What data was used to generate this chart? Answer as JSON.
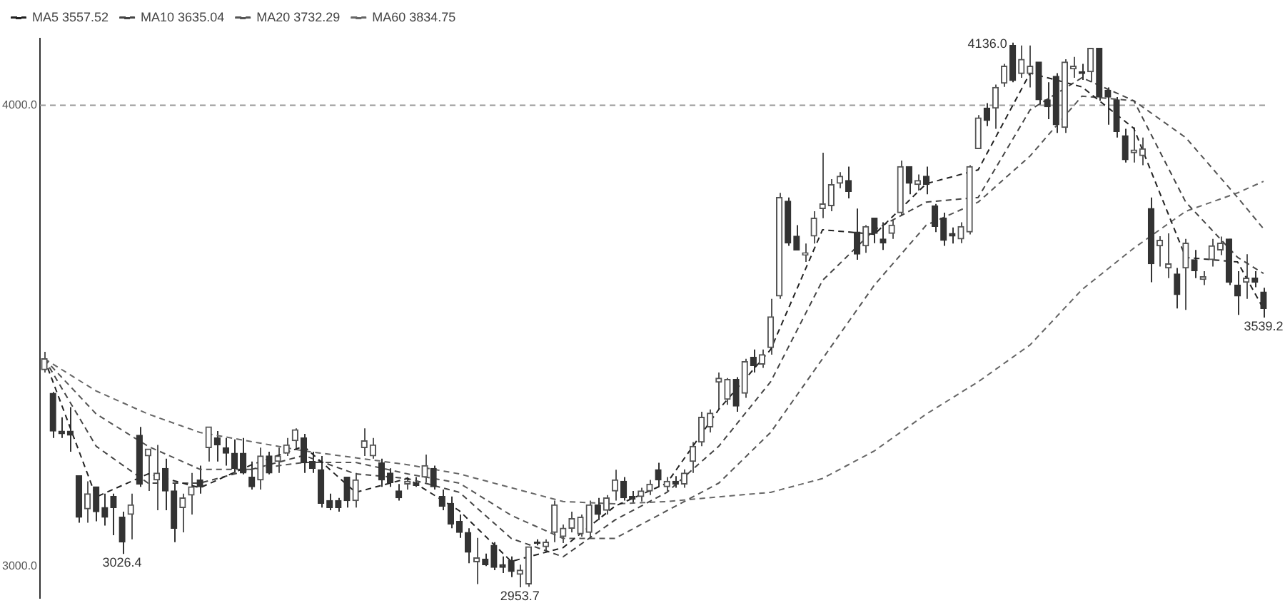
{
  "chart_data": {
    "type": "candlestick",
    "colors": [
      "#555555",
      "#333333",
      "#333333",
      "#333333",
      "#333333",
      "#555555",
      "#333333",
      "#333333",
      "#333333",
      "#333333",
      "#555555",
      "#333333",
      "#555555",
      "#555555",
      "#333333",
      "#333333",
      "#555555",
      "#555555",
      "#333333",
      "#555555",
      "#333333",
      "#333333",
      "#333333",
      "#333333",
      "#333333",
      "#555555",
      "#333333",
      "#555555",
      "#555555",
      "#555555",
      "#333333",
      "#333333",
      "#333333",
      "#333333",
      "#333333",
      "#333333",
      "#555555",
      "#555555",
      "#555555",
      "#333333",
      "#333333",
      "#333333",
      "#555555",
      "#333333",
      "#555555",
      "#333333",
      "#333333",
      "#333333",
      "#333333",
      "#333333",
      "#555555",
      "#333333",
      "#333333",
      "#333333",
      "#333333",
      "#555555",
      "#555555",
      "#333333",
      "#555555",
      "#555555",
      "#555555",
      "#555555",
      "#555555",
      "#555555",
      "#333333",
      "#555555",
      "#555555",
      "#333333",
      "#333333",
      "#555555",
      "#555555",
      "#333333",
      "#555555",
      "#333333",
      "#555555",
      "#555555",
      "#555555",
      "#555555",
      "#555555",
      "#555555",
      "#333333",
      "#555555",
      "#333333",
      "#555555",
      "#555555",
      "#555555",
      "#333333",
      "#333333",
      "#555555",
      "#555555",
      "#555555",
      "#555555",
      "#555555",
      "#333333",
      "#333333",
      "#555555",
      "#333333",
      "#333333",
      "#555555",
      "#555555",
      "#333333",
      "#555555",
      "#333333",
      "#333333",
      "#333333",
      "#333333",
      "#555555",
      "#555555",
      "#555555",
      "#333333",
      "#555555",
      "#555555",
      "#333333",
      "#555555",
      "#555555",
      "#333333",
      "#333333",
      "#333333",
      "#555555",
      "#555555",
      "#333333",
      "#555555",
      "#333333",
      "#333333",
      "#333333",
      "#333333",
      "#555555",
      "#555555",
      "#333333",
      "#555555",
      "#555555",
      "#333333",
      "#555555",
      "#333333",
      "#555555",
      "#555555",
      "#555555",
      "#333333",
      "#333333",
      "#555555",
      "#333333",
      "#333333"
    ],
    "line_style": "dashed",
    "legend": "top left",
    "grid": false,
    "categories": [
      null,
      null,
      null,
      null,
      null,
      null,
      null,
      null,
      null,
      null,
      null,
      null,
      null,
      null,
      null,
      null,
      null,
      null,
      null,
      null,
      null,
      null,
      null,
      null,
      null,
      null,
      null,
      null,
      null,
      null,
      null,
      null,
      null,
      null,
      null,
      null,
      null,
      null,
      null,
      null,
      null,
      null,
      null,
      null,
      null,
      null,
      null,
      null,
      null,
      null,
      null,
      null,
      null,
      null,
      null,
      null,
      null,
      null,
      null,
      null,
      null,
      null,
      null,
      null,
      null,
      null,
      null,
      null,
      null,
      null,
      null,
      null,
      null,
      null,
      null,
      null,
      null,
      null,
      null,
      null,
      null,
      null,
      null,
      null,
      null,
      null,
      null,
      null,
      null,
      null,
      null,
      null,
      null,
      null,
      null,
      null,
      null,
      null,
      null,
      null,
      null,
      null,
      null,
      null,
      null,
      null,
      null,
      null,
      null,
      null,
      null,
      null,
      null,
      null,
      null,
      null,
      null,
      null,
      null,
      null,
      null,
      null,
      null,
      null,
      null,
      null,
      null,
      null,
      null,
      null,
      null,
      null,
      null,
      null,
      null,
      null,
      null,
      null,
      null,
      null,
      null,
      null
    ],
    "ohlc": [
      [
        3426,
        3465,
        3420,
        3450
      ],
      [
        3375,
        3378,
        3278,
        3293
      ],
      [
        3293,
        3323,
        3278,
        3287
      ],
      [
        3293,
        3345,
        3248,
        3284
      ],
      [
        3196,
        3196,
        3094,
        3106
      ],
      [
        3124,
        3184,
        3094,
        3157
      ],
      [
        3172,
        3172,
        3097,
        3118
      ],
      [
        3127,
        3157,
        3088,
        3106
      ],
      [
        3151,
        3157,
        3067,
        3127
      ],
      [
        3106,
        3118,
        3026.4,
        3052
      ],
      [
        3112,
        3157,
        3058,
        3133
      ],
      [
        3284,
        3302,
        3172,
        3178
      ],
      [
        3239,
        3254,
        3163,
        3254
      ],
      [
        3187,
        3263,
        3121,
        3202
      ],
      [
        3212,
        3233,
        3121,
        3163
      ],
      [
        3163,
        3181,
        3052,
        3082
      ],
      [
        3127,
        3157,
        3073,
        3148
      ],
      [
        3154,
        3202,
        3112,
        3172
      ],
      [
        3187,
        3218,
        3157,
        3172
      ],
      [
        3257,
        3302,
        3227,
        3302
      ],
      [
        3278,
        3293,
        3227,
        3263
      ],
      [
        3257,
        3278,
        3218,
        3245
      ],
      [
        3245,
        3275,
        3202,
        3212
      ],
      [
        3245,
        3278,
        3199,
        3202
      ],
      [
        3193,
        3227,
        3166,
        3172
      ],
      [
        3187,
        3257,
        3166,
        3239
      ],
      [
        3239,
        3248,
        3199,
        3202
      ],
      [
        3227,
        3257,
        3202,
        3239
      ],
      [
        3245,
        3278,
        3239,
        3263
      ],
      [
        3272,
        3299,
        3254,
        3296
      ],
      [
        3278,
        3287,
        3202,
        3224
      ],
      [
        3227,
        3248,
        3202,
        3212
      ],
      [
        3209,
        3239,
        3127,
        3136
      ],
      [
        3142,
        3157,
        3121,
        3127
      ],
      [
        3142,
        3148,
        3118,
        3127
      ],
      [
        3193,
        3193,
        3127,
        3142
      ],
      [
        3142,
        3202,
        3127,
        3187
      ],
      [
        3257,
        3299,
        3239,
        3272
      ],
      [
        3239,
        3278,
        3233,
        3263
      ],
      [
        3224,
        3233,
        3172,
        3187
      ],
      [
        3202,
        3212,
        3172,
        3181
      ],
      [
        3163,
        3178,
        3142,
        3148
      ],
      [
        3178,
        3193,
        3166,
        3184
      ],
      [
        3181,
        3193,
        3172,
        3175
      ],
      [
        3193,
        3242,
        3181,
        3218
      ],
      [
        3212,
        3218,
        3166,
        3172
      ],
      [
        3151,
        3166,
        3121,
        3130
      ],
      [
        3136,
        3151,
        3082,
        3091
      ],
      [
        3097,
        3112,
        3061,
        3073
      ],
      [
        3073,
        3082,
        3006,
        3030
      ],
      [
        3009,
        3061,
        2961,
        3018
      ],
      [
        3015,
        3027,
        3000,
        3003
      ],
      [
        3045,
        3052,
        2991,
        2997
      ],
      [
        3003,
        3021,
        2985,
        2997
      ],
      [
        3012,
        3021,
        2976,
        2988
      ],
      [
        2982,
        3003,
        2953.7,
        2991
      ],
      [
        2961,
        3042,
        2955,
        3042
      ],
      [
        3052,
        3058,
        3045,
        3049
      ],
      [
        3042,
        3058,
        3030,
        3052
      ],
      [
        3073,
        3142,
        3052,
        3133
      ],
      [
        3064,
        3090,
        3050,
        3082
      ],
      [
        3082,
        3118,
        3073,
        3103
      ],
      [
        3070,
        3112,
        3064,
        3106
      ],
      [
        3073,
        3142,
        3061,
        3133
      ],
      [
        3133,
        3148,
        3100,
        3112
      ],
      [
        3121,
        3154,
        3112,
        3148
      ],
      [
        3163,
        3209,
        3142,
        3187
      ],
      [
        3184,
        3193,
        3142,
        3148
      ],
      [
        3151,
        3163,
        3136,
        3145
      ],
      [
        3151,
        3170,
        3140,
        3163
      ],
      [
        3163,
        3187,
        3154,
        3178
      ],
      [
        3209,
        3224,
        3172,
        3187
      ],
      [
        3172,
        3193,
        3163,
        3184
      ],
      [
        3184,
        3195,
        3170,
        3178
      ],
      [
        3178,
        3210,
        3170,
        3202
      ],
      [
        3227,
        3269,
        3202,
        3260
      ],
      [
        3269,
        3335,
        3260,
        3323
      ],
      [
        3302,
        3340,
        3290,
        3332
      ],
      [
        3399,
        3420,
        3340,
        3408
      ],
      [
        3362,
        3408,
        3350,
        3405
      ],
      [
        3405,
        3410,
        3335,
        3347
      ],
      [
        3375,
        3450,
        3365,
        3444
      ],
      [
        3453,
        3470,
        3420,
        3435
      ],
      [
        3438,
        3470,
        3430,
        3459
      ],
      [
        3474,
        3580,
        3459,
        3541
      ],
      [
        3586,
        3810,
        3580,
        3800
      ],
      [
        3792,
        3800,
        3695,
        3701
      ],
      [
        3716,
        3740,
        3686,
        3686
      ],
      [
        3675,
        3700,
        3660,
        3680
      ],
      [
        3716,
        3770,
        3700,
        3755
      ],
      [
        3776,
        3897,
        3755,
        3786
      ],
      [
        3782,
        3840,
        3770,
        3828
      ],
      [
        3831,
        3855,
        3820,
        3846
      ],
      [
        3837,
        3867,
        3798,
        3813
      ],
      [
        3725,
        3776,
        3665,
        3677
      ],
      [
        3695,
        3740,
        3680,
        3737
      ],
      [
        3755,
        3755,
        3701,
        3722
      ],
      [
        3710,
        3746,
        3686,
        3701
      ],
      [
        3722,
        3750,
        3710,
        3740
      ],
      [
        3767,
        3880,
        3760,
        3867
      ],
      [
        3867,
        3867,
        3807,
        3831
      ],
      [
        3828,
        3850,
        3815,
        3837
      ],
      [
        3846,
        3867,
        3807,
        3828
      ],
      [
        3782,
        3786,
        3725,
        3737
      ],
      [
        3755,
        3767,
        3695,
        3707
      ],
      [
        3722,
        3735,
        3700,
        3716
      ],
      [
        3710,
        3746,
        3701,
        3737
      ],
      [
        3725,
        3870,
        3720,
        3867
      ],
      [
        3906,
        3979,
        3906,
        3973
      ],
      [
        3994,
        4005,
        3955,
        3967
      ],
      [
        3994,
        4045,
        3949,
        4039
      ],
      [
        4048,
        4090,
        4040,
        4085
      ],
      [
        4130,
        4136.0,
        4050,
        4054
      ],
      [
        4069,
        4130,
        4060,
        4100
      ],
      [
        4069,
        4130,
        4039,
        4085
      ],
      [
        4094,
        4094,
        4000,
        4012
      ],
      [
        4012,
        4050,
        3970,
        3997
      ],
      [
        4063,
        4070,
        3940,
        3958
      ],
      [
        3952,
        4100,
        3940,
        4094
      ],
      [
        4079,
        4105,
        4060,
        4085
      ],
      [
        4073,
        4090,
        4055,
        4069
      ],
      [
        4073,
        4124,
        4050,
        4124
      ],
      [
        4124,
        4124,
        4010,
        4018
      ],
      [
        4033,
        4039,
        3958,
        4018
      ],
      [
        4012,
        4018,
        3930,
        3943
      ],
      [
        3934,
        3949,
        3876,
        3882
      ],
      [
        3897,
        3952,
        3876,
        3903
      ],
      [
        3891,
        3930,
        3870,
        3906
      ],
      [
        3776,
        3800,
        3616,
        3656
      ],
      [
        3695,
        3716,
        3650,
        3707
      ],
      [
        3647,
        3722,
        3625,
        3656
      ],
      [
        3634,
        3647,
        3559,
        3589
      ],
      [
        3647,
        3710,
        3556,
        3701
      ],
      [
        3665,
        3686,
        3625,
        3641
      ],
      [
        3622,
        3640,
        3610,
        3628
      ],
      [
        3665,
        3710,
        3650,
        3695
      ],
      [
        3686,
        3715,
        3675,
        3701
      ],
      [
        3710,
        3710,
        3610,
        3616
      ],
      [
        3610,
        3640,
        3545,
        3586
      ],
      [
        3616,
        3677,
        3580,
        3625
      ],
      [
        3625,
        3640,
        3605,
        3616
      ],
      [
        3595,
        3604,
        3539.2,
        3559
      ]
    ],
    "series": [
      {
        "type": "line",
        "name": "MA5 3557.52",
        "color": "#222222",
        "values": [
          3450,
          null,
          null,
          null,
          null,
          null,
          3150,
          null,
          null,
          null,
          null,
          null,
          3200,
          null,
          null,
          null,
          null,
          null,
          3170,
          null,
          null,
          null,
          null,
          null,
          3220,
          null,
          null,
          null,
          null,
          null,
          3260,
          null,
          null,
          null,
          null,
          null,
          3160,
          null,
          null,
          null,
          null,
          null,
          3190,
          null,
          null,
          null,
          null,
          null,
          3120,
          null,
          null,
          null,
          null,
          null,
          3010,
          null,
          null,
          null,
          null,
          null,
          3040,
          null,
          null,
          null,
          null,
          null,
          3130,
          null,
          null,
          null,
          null,
          null,
          3180,
          null,
          null,
          null,
          null,
          null,
          3340,
          null,
          null,
          null,
          null,
          null,
          3470,
          null,
          null,
          null,
          null,
          null,
          3730,
          null,
          null,
          null,
          null,
          null,
          3720,
          null,
          null,
          null,
          null,
          null,
          3830,
          null,
          null,
          null,
          null,
          null,
          3860,
          null,
          null,
          null,
          null,
          null,
          4070,
          null,
          null,
          null,
          null,
          null,
          4040,
          null,
          null,
          null,
          null,
          null,
          3950,
          null,
          null,
          null,
          null,
          null,
          3670,
          null,
          null,
          null,
          null,
          null,
          3660,
          null,
          null,
          3558
        ]
      },
      {
        "type": "line",
        "name": "MA10 3635.04",
        "color": "#444444",
        "values": [
          3450,
          null,
          null,
          null,
          null,
          null,
          3260,
          null,
          null,
          null,
          null,
          null,
          3180,
          null,
          null,
          null,
          null,
          null,
          3180,
          null,
          null,
          null,
          null,
          null,
          3210,
          null,
          null,
          null,
          null,
          null,
          3240,
          null,
          null,
          null,
          null,
          null,
          3200,
          null,
          null,
          null,
          null,
          null,
          3190,
          null,
          null,
          null,
          null,
          null,
          3160,
          null,
          null,
          null,
          null,
          null,
          3060,
          null,
          null,
          null,
          null,
          null,
          3020,
          null,
          null,
          null,
          null,
          null,
          3100,
          null,
          null,
          null,
          null,
          null,
          3160,
          null,
          null,
          null,
          null,
          null,
          3260,
          null,
          null,
          null,
          null,
          null,
          3400,
          null,
          null,
          null,
          null,
          null,
          3620,
          null,
          null,
          null,
          null,
          null,
          3730,
          null,
          null,
          null,
          null,
          null,
          3790,
          null,
          null,
          null,
          null,
          null,
          3800,
          null,
          null,
          null,
          null,
          null,
          3990,
          null,
          null,
          null,
          null,
          null,
          4060,
          null,
          null,
          null,
          null,
          null,
          4010,
          null,
          null,
          null,
          null,
          null,
          3790,
          null,
          null,
          null,
          null,
          null,
          3670,
          null,
          null,
          3635
        ]
      },
      {
        "type": "line",
        "name": "MA20 3732.29",
        "color": "#555555",
        "values": [
          3450,
          null,
          null,
          null,
          null,
          null,
          3330,
          null,
          null,
          null,
          null,
          null,
          3260,
          null,
          null,
          null,
          null,
          null,
          3210,
          null,
          null,
          null,
          null,
          null,
          3210,
          null,
          null,
          null,
          null,
          null,
          3225,
          null,
          null,
          null,
          null,
          null,
          3225,
          null,
          null,
          null,
          null,
          null,
          3200,
          null,
          null,
          null,
          null,
          null,
          3180,
          null,
          null,
          null,
          null,
          null,
          3110,
          null,
          null,
          null,
          null,
          null,
          3060,
          null,
          null,
          null,
          null,
          null,
          3060,
          null,
          null,
          null,
          null,
          null,
          3120,
          null,
          null,
          null,
          null,
          null,
          3180,
          null,
          null,
          null,
          null,
          null,
          3290,
          null,
          null,
          null,
          null,
          null,
          3450,
          null,
          null,
          null,
          null,
          null,
          3610,
          null,
          null,
          null,
          null,
          null,
          3740,
          null,
          null,
          null,
          null,
          null,
          3790,
          null,
          null,
          null,
          null,
          null,
          3890,
          null,
          null,
          null,
          null,
          null,
          4020,
          null,
          null,
          null,
          null,
          null,
          4010,
          null,
          null,
          null,
          null,
          null,
          3930,
          null,
          null,
          null,
          null,
          null,
          3800,
          null,
          null,
          3732
        ]
      },
      {
        "type": "line",
        "name": "MA60 3834.75",
        "color": "#666666",
        "values": [
          3450,
          null,
          null,
          null,
          null,
          null,
          3380,
          null,
          null,
          null,
          null,
          null,
          3330,
          null,
          null,
          null,
          null,
          null,
          3290,
          null,
          null,
          null,
          null,
          null,
          3270,
          null,
          null,
          null,
          null,
          null,
          3250,
          null,
          null,
          null,
          null,
          null,
          3235,
          null,
          null,
          null,
          null,
          null,
          3220,
          null,
          null,
          null,
          null,
          null,
          3200,
          null,
          null,
          null,
          null,
          null,
          3170,
          null,
          null,
          null,
          null,
          null,
          3140,
          null,
          null,
          null,
          null,
          null,
          3135,
          null,
          null,
          null,
          null,
          null,
          3140,
          null,
          null,
          null,
          null,
          null,
          3150,
          null,
          null,
          null,
          null,
          null,
          3160,
          null,
          null,
          null,
          null,
          null,
          3190,
          null,
          null,
          null,
          null,
          null,
          3250,
          null,
          null,
          null,
          null,
          null,
          3330,
          null,
          null,
          null,
          null,
          null,
          3400,
          null,
          null,
          null,
          null,
          null,
          3480,
          null,
          null,
          null,
          null,
          null,
          3600,
          null,
          null,
          null,
          null,
          null,
          3690,
          null,
          null,
          null,
          null,
          null,
          3770,
          null,
          null,
          null,
          null,
          null,
          3810,
          null,
          null,
          3835
        ]
      }
    ],
    "ylim": [
      2930,
      4145
    ],
    "yticks": [
      {
        "value": 3000,
        "label": "3000.0"
      },
      {
        "value": 4000,
        "label": "4000.0"
      }
    ],
    "ref_lines": [
      {
        "axis": "y",
        "value": 4000,
        "color": "#999999",
        "line_style": "dashed"
      }
    ],
    "annotations": [
      "4136.0",
      {
        "text": "3026.4",
        "y": 3026.4
      },
      {
        "text": "2953.7",
        "y": 2953.7
      },
      {
        "text": "3539.2",
        "y": 3539.2
      }
    ]
  }
}
